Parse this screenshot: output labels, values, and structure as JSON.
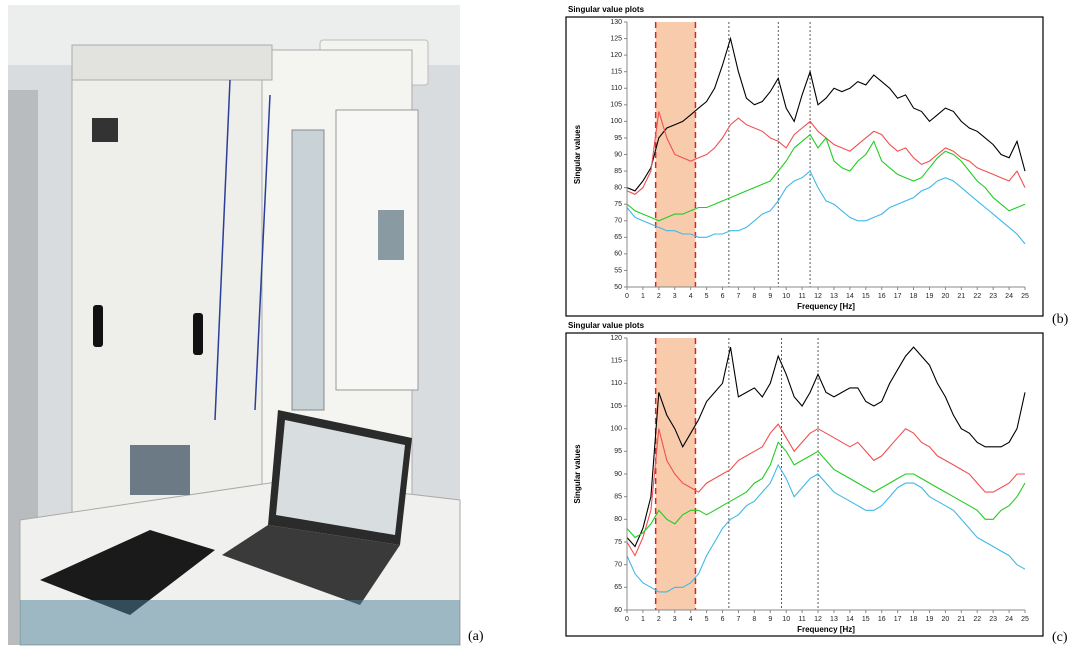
{
  "photo": {
    "panel_label": "(a)"
  },
  "chart_data": [
    {
      "type": "line",
      "title": "Singular value plots",
      "x_label": "Frequency [Hz]",
      "y_label": "Singular values",
      "panel_label": "(b)",
      "x": [
        0,
        0.5,
        1,
        1.5,
        2,
        2.5,
        3,
        3.5,
        4,
        4.5,
        5,
        5.5,
        6,
        6.5,
        7,
        7.5,
        8,
        8.5,
        9,
        9.5,
        10,
        10.5,
        11,
        11.5,
        12,
        12.5,
        13,
        13.5,
        14,
        14.5,
        15,
        15.5,
        16,
        16.5,
        17,
        17.5,
        18,
        18.5,
        19,
        19.5,
        20,
        20.5,
        21,
        21.5,
        22,
        22.5,
        23,
        23.5,
        24,
        24.5,
        25
      ],
      "xlim": [
        0,
        25
      ],
      "xticks": [
        0,
        1,
        2,
        3,
        4,
        5,
        6,
        7,
        8,
        9,
        10,
        11,
        12,
        13,
        14,
        15,
        16,
        17,
        18,
        19,
        20,
        21,
        22,
        23,
        24,
        25
      ],
      "ylim": [
        50,
        130
      ],
      "yticks": [
        50,
        55,
        60,
        65,
        70,
        75,
        80,
        85,
        90,
        95,
        100,
        105,
        110,
        115,
        120,
        125,
        130
      ],
      "band": [
        1.8,
        4.3
      ],
      "band_color": "#f8cbad",
      "vlines": [
        6.4,
        9.5,
        11.5
      ],
      "series": [
        {
          "color": "#000000",
          "values": [
            80,
            79,
            82,
            86,
            95,
            98,
            99,
            100,
            102,
            104,
            106,
            110,
            117,
            125,
            115,
            107,
            105,
            106,
            109,
            113,
            104,
            100,
            108,
            115,
            105,
            107,
            110,
            109,
            110,
            112,
            111,
            114,
            112,
            110,
            107,
            108,
            104,
            103,
            100,
            102,
            104,
            103,
            100,
            98,
            97,
            95,
            93,
            90,
            89,
            94,
            85
          ]
        },
        {
          "color": "#f05050",
          "values": [
            79,
            78,
            80,
            85,
            103,
            95,
            90,
            89,
            88,
            89,
            90,
            92,
            95,
            99,
            101,
            99,
            98,
            97,
            95,
            94,
            92,
            96,
            98,
            100,
            97,
            95,
            93,
            92,
            91,
            93,
            95,
            97,
            96,
            93,
            91,
            92,
            89,
            87,
            88,
            90,
            92,
            91,
            89,
            88,
            86,
            85,
            84,
            83,
            82,
            85,
            80
          ]
        },
        {
          "color": "#22cc22",
          "values": [
            75,
            73,
            72,
            71,
            70,
            71,
            72,
            72,
            73,
            74,
            74,
            75,
            76,
            77,
            78,
            79,
            80,
            81,
            82,
            85,
            88,
            92,
            94,
            96,
            92,
            95,
            88,
            86,
            85,
            88,
            90,
            94,
            88,
            86,
            84,
            83,
            82,
            83,
            86,
            89,
            91,
            90,
            88,
            85,
            82,
            80,
            77,
            75,
            73,
            74,
            75
          ]
        },
        {
          "color": "#40b8e8",
          "values": [
            74,
            71,
            70,
            69,
            68,
            67,
            67,
            66,
            66,
            65,
            65,
            66,
            66,
            67,
            67,
            68,
            70,
            72,
            73,
            76,
            80,
            82,
            83,
            85,
            80,
            76,
            75,
            73,
            71,
            70,
            70,
            71,
            72,
            74,
            75,
            76,
            77,
            79,
            80,
            82,
            83,
            82,
            80,
            78,
            76,
            74,
            72,
            70,
            68,
            66,
            63
          ]
        }
      ]
    },
    {
      "type": "line",
      "title": "Singular value plots",
      "x_label": "Frequency [Hz]",
      "y_label": "Singular values",
      "panel_label": "(c)",
      "x": [
        0,
        0.5,
        1,
        1.5,
        2,
        2.5,
        3,
        3.5,
        4,
        4.5,
        5,
        5.5,
        6,
        6.5,
        7,
        7.5,
        8,
        8.5,
        9,
        9.5,
        10,
        10.5,
        11,
        11.5,
        12,
        12.5,
        13,
        13.5,
        14,
        14.5,
        15,
        15.5,
        16,
        16.5,
        17,
        17.5,
        18,
        18.5,
        19,
        19.5,
        20,
        20.5,
        21,
        21.5,
        22,
        22.5,
        23,
        23.5,
        24,
        24.5,
        25
      ],
      "xlim": [
        0,
        25
      ],
      "xticks": [
        0,
        1,
        2,
        3,
        4,
        5,
        6,
        7,
        8,
        9,
        10,
        11,
        12,
        13,
        14,
        15,
        16,
        17,
        18,
        19,
        20,
        21,
        22,
        23,
        24,
        25
      ],
      "ylim": [
        60,
        120
      ],
      "yticks": [
        60,
        65,
        70,
        75,
        80,
        85,
        90,
        95,
        100,
        105,
        110,
        115,
        120
      ],
      "band": [
        1.8,
        4.3
      ],
      "band_color": "#f8cbad",
      "vlines": [
        6.4,
        9.7,
        12
      ],
      "series": [
        {
          "color": "#000000",
          "values": [
            76,
            74,
            78,
            85,
            108,
            103,
            100,
            96,
            99,
            102,
            106,
            108,
            110,
            118,
            107,
            108,
            109,
            107,
            110,
            116,
            112,
            107,
            105,
            108,
            112,
            108,
            107,
            108,
            109,
            109,
            106,
            105,
            106,
            110,
            113,
            116,
            118,
            116,
            114,
            110,
            107,
            103,
            100,
            99,
            97,
            96,
            96,
            96,
            97,
            100,
            108
          ]
        },
        {
          "color": "#f05050",
          "values": [
            75,
            72,
            76,
            82,
            100,
            93,
            90,
            88,
            87,
            86,
            88,
            89,
            90,
            91,
            93,
            94,
            95,
            96,
            99,
            101,
            98,
            95,
            97,
            99,
            100,
            99,
            98,
            97,
            96,
            97,
            95,
            93,
            94,
            96,
            98,
            100,
            99,
            97,
            96,
            94,
            93,
            92,
            91,
            90,
            88,
            86,
            86,
            87,
            88,
            90,
            90
          ]
        },
        {
          "color": "#22cc22",
          "values": [
            78,
            76,
            77,
            79,
            82,
            80,
            79,
            81,
            82,
            82,
            81,
            82,
            83,
            84,
            85,
            86,
            88,
            89,
            92,
            97,
            95,
            92,
            93,
            94,
            95,
            93,
            91,
            90,
            89,
            88,
            87,
            86,
            87,
            88,
            89,
            90,
            90,
            89,
            88,
            87,
            86,
            85,
            84,
            83,
            82,
            80,
            80,
            82,
            83,
            85,
            88
          ]
        },
        {
          "color": "#40b8e8",
          "values": [
            72,
            68,
            66,
            65,
            64,
            64,
            65,
            65,
            66,
            68,
            72,
            75,
            78,
            80,
            81,
            83,
            84,
            86,
            88,
            92,
            89,
            85,
            87,
            89,
            90,
            88,
            86,
            85,
            84,
            83,
            82,
            82,
            83,
            85,
            87,
            88,
            88,
            87,
            85,
            84,
            83,
            82,
            80,
            78,
            76,
            75,
            74,
            73,
            72,
            70,
            69
          ]
        }
      ]
    }
  ]
}
